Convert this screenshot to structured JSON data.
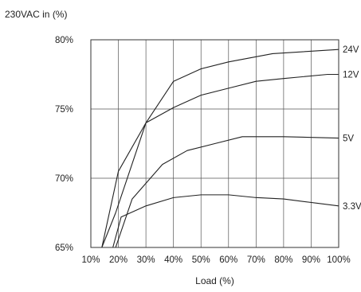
{
  "chart_data": {
    "type": "line",
    "ylabel": "230VAC in (%)",
    "xlabel": "Load (%)",
    "xlim": [
      10,
      100
    ],
    "ylim": [
      65,
      80
    ],
    "x_ticks": [
      "10%",
      "20%",
      "30%",
      "40%",
      "50%",
      "60%",
      "70%",
      "80%",
      "90%",
      "100%"
    ],
    "y_ticks": [
      "80%",
      "75%",
      "70%",
      "65%"
    ],
    "x_tick_values": [
      10,
      20,
      30,
      40,
      50,
      60,
      70,
      80,
      90,
      100
    ],
    "y_tick_values": [
      80,
      75,
      70,
      65
    ],
    "grid": true,
    "line_color": "#222222",
    "grid_color": "#555555",
    "series": [
      {
        "name": "24V",
        "x": [
          14,
          19,
          30,
          40,
          50,
          60,
          76,
          100
        ],
        "y": [
          65,
          67.5,
          74,
          77,
          77.9,
          78.4,
          79,
          79.3
        ]
      },
      {
        "name": "12V",
        "x": [
          14,
          20,
          30,
          40,
          50,
          60,
          70,
          80,
          96,
          100
        ],
        "y": [
          65,
          70.5,
          74,
          75.1,
          76,
          76.5,
          77,
          77.2,
          77.5,
          77.5
        ]
      },
      {
        "name": "5V",
        "x": [
          19,
          25,
          36,
          45,
          55,
          65,
          80,
          100
        ],
        "y": [
          65,
          68.5,
          71,
          72,
          72.5,
          73,
          73,
          72.9
        ]
      },
      {
        "name": "3.3V",
        "x": [
          18,
          21,
          30,
          40,
          50,
          60,
          70,
          80,
          100
        ],
        "y": [
          65,
          67.2,
          68,
          68.6,
          68.8,
          68.8,
          68.6,
          68.5,
          68
        ]
      }
    ]
  }
}
